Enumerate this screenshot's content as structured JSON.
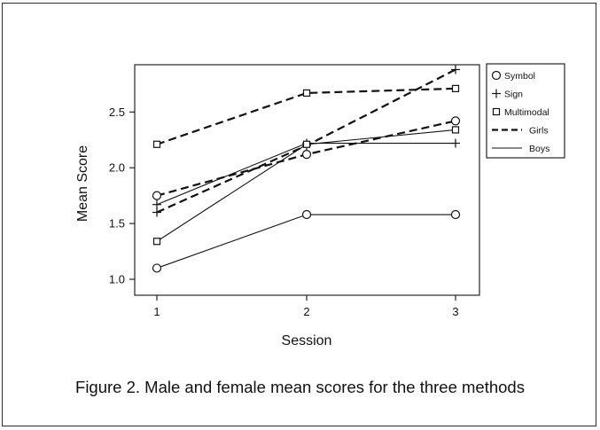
{
  "caption": "Figure 2. Male and female mean scores for the three methods",
  "chart_data": {
    "type": "line",
    "xlabel": "Session",
    "ylabel": "Mean Score",
    "x": [
      1,
      2,
      3
    ],
    "xlim": [
      0.8,
      3.2
    ],
    "ylim": [
      0.9,
      2.95
    ],
    "xticks": [
      1,
      2,
      3
    ],
    "yticks": [
      1.0,
      1.5,
      2.0,
      2.5
    ],
    "ytick_labels": [
      "1.0",
      "1.5",
      "2.0",
      "2.5"
    ],
    "grid": false,
    "legend_position": "right",
    "legend": [
      {
        "label": "Symbol",
        "kind": "marker",
        "marker": "circle"
      },
      {
        "label": "Sign",
        "kind": "marker",
        "marker": "plus"
      },
      {
        "label": "Multimodal",
        "kind": "marker",
        "marker": "square"
      },
      {
        "label": "Girls",
        "kind": "line",
        "dash": "dashed"
      },
      {
        "label": "Boys",
        "kind": "line",
        "dash": "solid"
      }
    ],
    "series": [
      {
        "method": "Symbol",
        "gender": "Girls",
        "marker": "circle",
        "dash": "dashed",
        "values": [
          1.75,
          2.12,
          2.42
        ]
      },
      {
        "method": "Symbol",
        "gender": "Boys",
        "marker": "circle",
        "dash": "solid",
        "values": [
          1.1,
          1.58,
          1.58
        ]
      },
      {
        "method": "Sign",
        "gender": "Girls",
        "marker": "plus",
        "dash": "dashed",
        "values": [
          1.6,
          2.2,
          2.88
        ]
      },
      {
        "method": "Sign",
        "gender": "Boys",
        "marker": "plus",
        "dash": "solid",
        "values": [
          1.67,
          2.22,
          2.22
        ]
      },
      {
        "method": "Multimodal",
        "gender": "Girls",
        "marker": "square",
        "dash": "dashed",
        "values": [
          2.21,
          2.67,
          2.71
        ]
      },
      {
        "method": "Multimodal",
        "gender": "Boys",
        "marker": "square",
        "dash": "solid",
        "values": [
          1.34,
          2.21,
          2.34
        ]
      }
    ],
    "colors": {
      "line": "#111111",
      "frame": "#2b2b2b"
    }
  }
}
